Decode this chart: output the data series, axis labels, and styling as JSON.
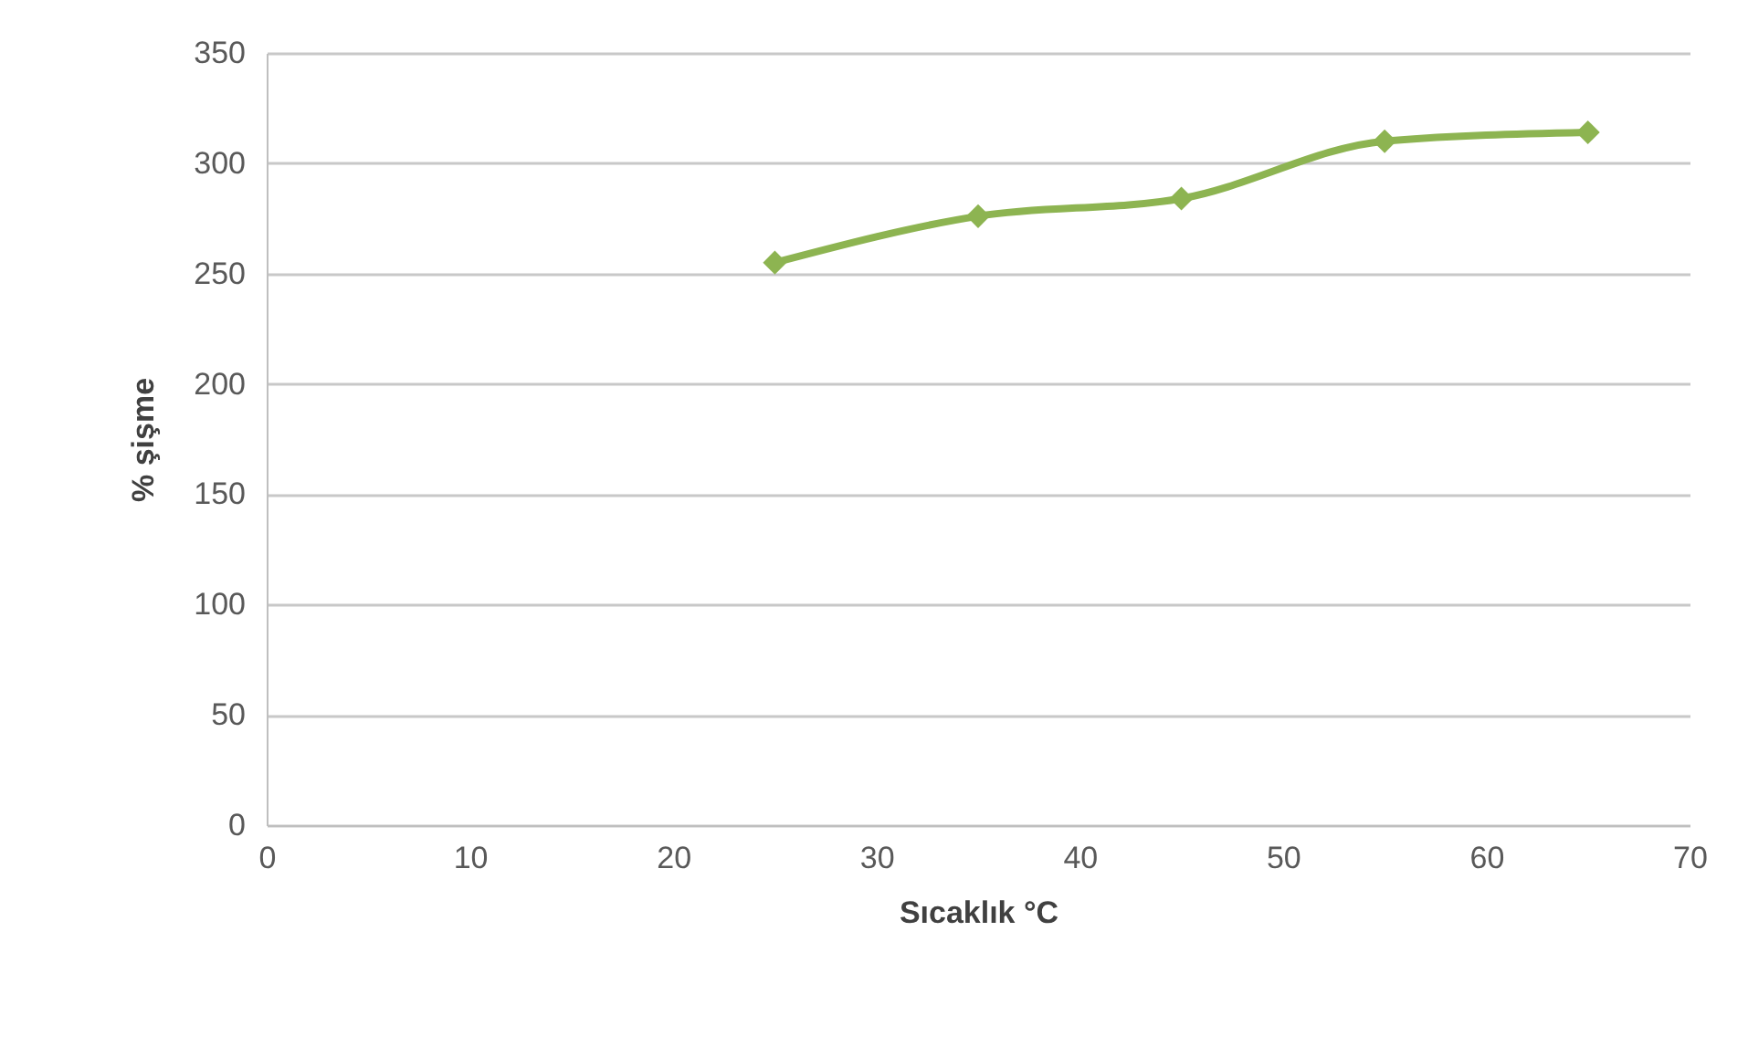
{
  "chart_data": {
    "type": "line",
    "xlabel": "Sıcaklık °C",
    "ylabel": "% şişme",
    "x": [
      25,
      35,
      45,
      55,
      65
    ],
    "series": [
      {
        "color": "#8db451",
        "values": [
          255,
          276,
          284,
          310,
          314
        ]
      }
    ],
    "xlim": [
      0,
      70
    ],
    "xticks": [
      0,
      10,
      20,
      30,
      40,
      50,
      60,
      70
    ],
    "ylim": [
      0,
      350
    ],
    "yticks": [
      0,
      50,
      100,
      150,
      200,
      250,
      300,
      350
    ],
    "grid": "y",
    "marker": "diamond",
    "line_style": "solid"
  }
}
